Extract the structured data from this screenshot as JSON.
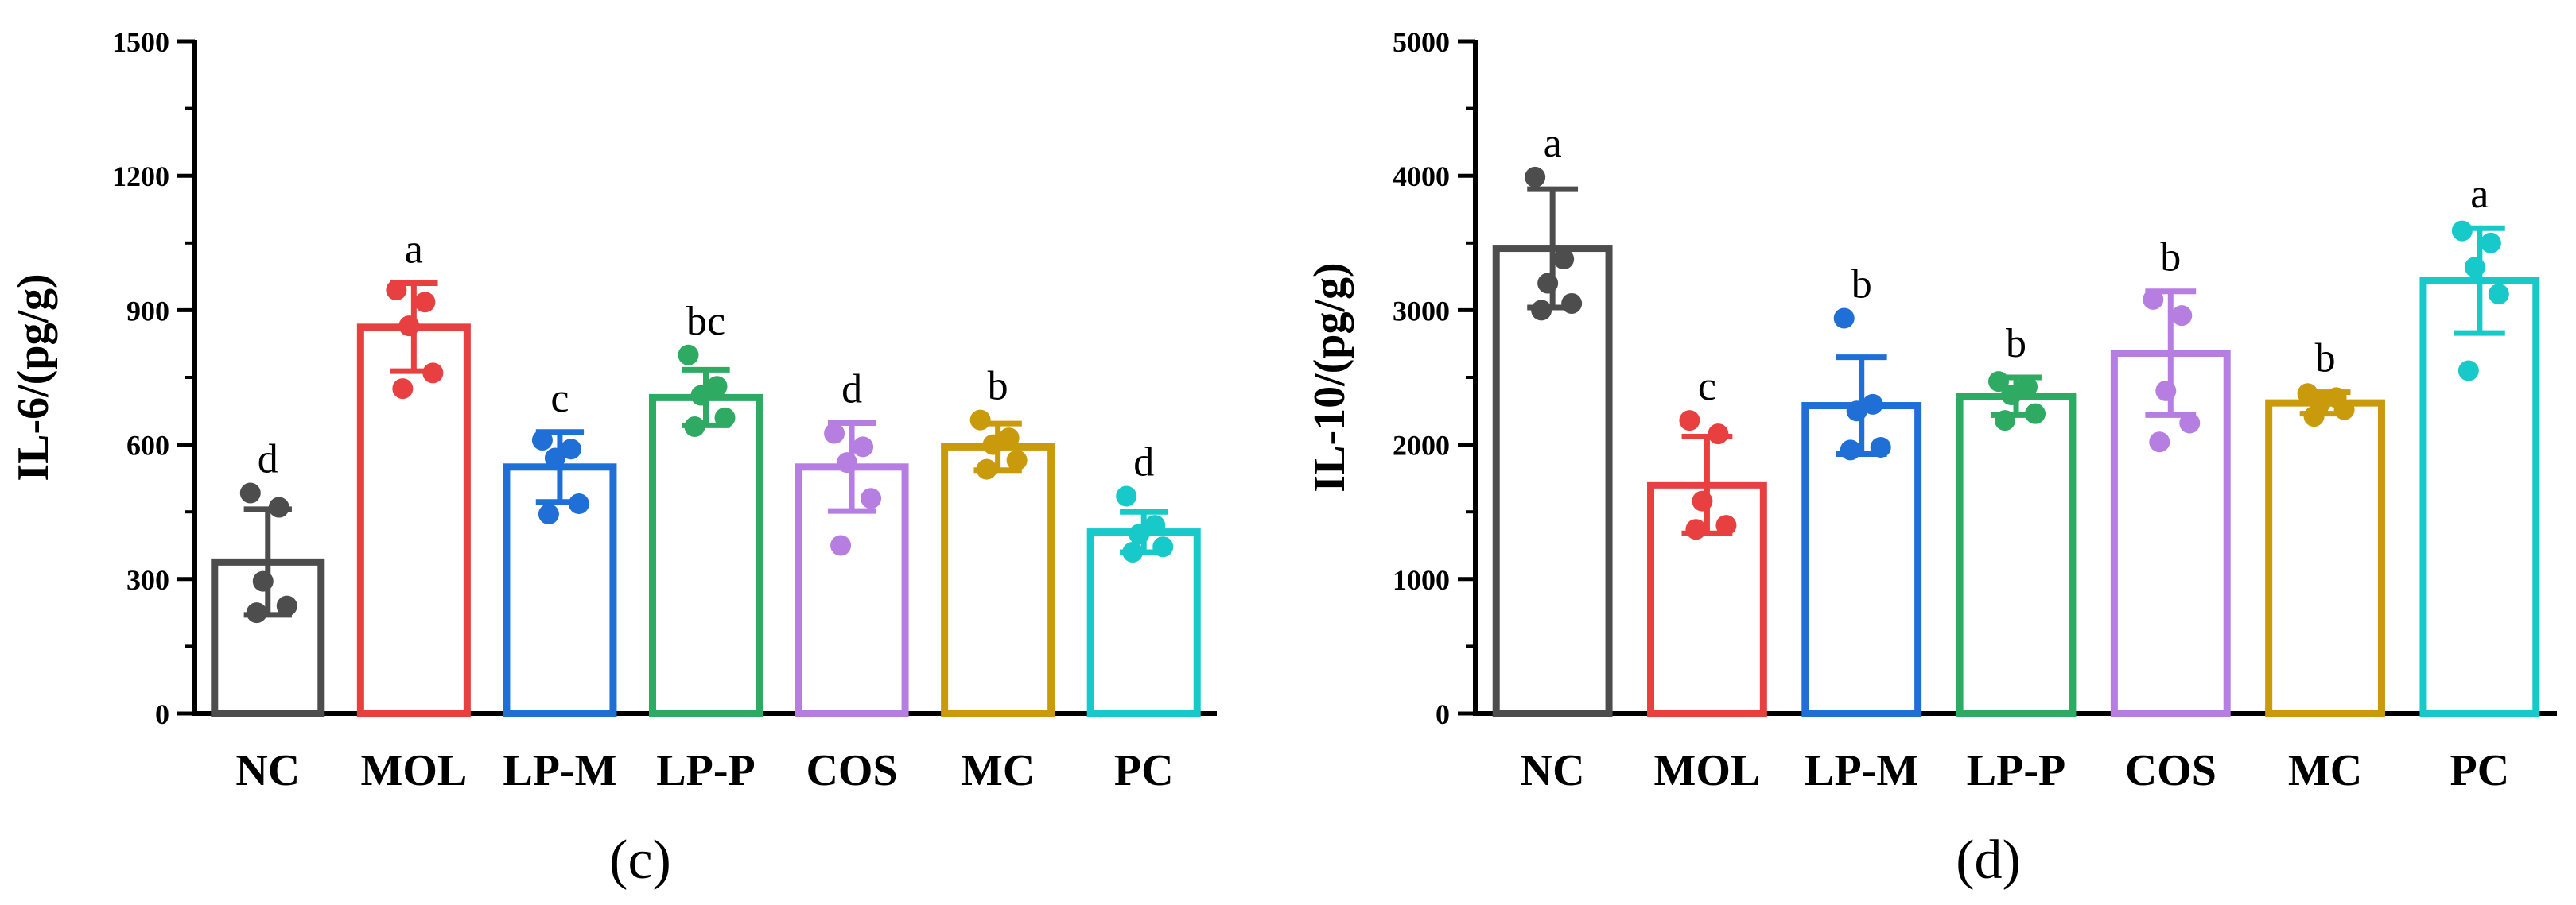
{
  "chart_data": [
    {
      "type": "bar",
      "panel_label": "(c)",
      "ylabel": "IL-6/(pg/g)",
      "ylim": [
        0,
        1500
      ],
      "yticks": [
        0,
        300,
        600,
        900,
        1200,
        1500
      ],
      "categories": [
        "NC",
        "MOL",
        "LP-M",
        "LP-P",
        "COS",
        "MC",
        "PC"
      ],
      "colors": [
        "#4d4d4d",
        "#e84040",
        "#1f6fd6",
        "#2eaa63",
        "#b57ee0",
        "#c99a0b",
        "#18c9c9"
      ],
      "values": [
        338,
        862,
        550,
        705,
        550,
        595,
        405
      ],
      "sd": [
        118,
        98,
        78,
        62,
        98,
        52,
        45
      ],
      "significance": [
        "d",
        "a",
        "c",
        "bc",
        "d",
        "b",
        "d"
      ],
      "points": [
        [
          492,
          460,
          295,
          240,
          225
        ],
        [
          945,
          918,
          865,
          760,
          725
        ],
        [
          610,
          590,
          570,
          468,
          445
        ],
        [
          800,
          730,
          710,
          660,
          640
        ],
        [
          625,
          595,
          560,
          480,
          375
        ],
        [
          655,
          615,
          600,
          565,
          545
        ],
        [
          485,
          420,
          400,
          372,
          360
        ]
      ]
    },
    {
      "type": "bar",
      "panel_label": "(d)",
      "ylabel": "IL-10/(pg/g)",
      "ylim": [
        0,
        5000
      ],
      "yticks": [
        0,
        1000,
        2000,
        3000,
        4000,
        5000
      ],
      "categories": [
        "NC",
        "MOL",
        "LP-M",
        "LP-P",
        "COS",
        "MC",
        "PC"
      ],
      "colors": [
        "#4d4d4d",
        "#e84040",
        "#1f6fd6",
        "#2eaa63",
        "#b57ee0",
        "#c99a0b",
        "#18c9c9"
      ],
      "values": [
        3460,
        1700,
        2290,
        2360,
        2680,
        2310,
        3220
      ],
      "sd": [
        440,
        360,
        360,
        140,
        460,
        80,
        390
      ],
      "significance": [
        "a",
        "c",
        "b",
        "b",
        "b",
        "b",
        "a"
      ],
      "points": [
        [
          3990,
          3380,
          3200,
          3050,
          3000
        ],
        [
          2180,
          2080,
          1580,
          1400,
          1370
        ],
        [
          2940,
          2300,
          2250,
          1980,
          1960
        ],
        [
          2470,
          2430,
          2370,
          2230,
          2180
        ],
        [
          3080,
          2960,
          2400,
          2160,
          2020
        ],
        [
          2380,
          2350,
          2310,
          2260,
          2210
        ],
        [
          3590,
          3500,
          3320,
          3120,
          2550
        ]
      ]
    }
  ]
}
